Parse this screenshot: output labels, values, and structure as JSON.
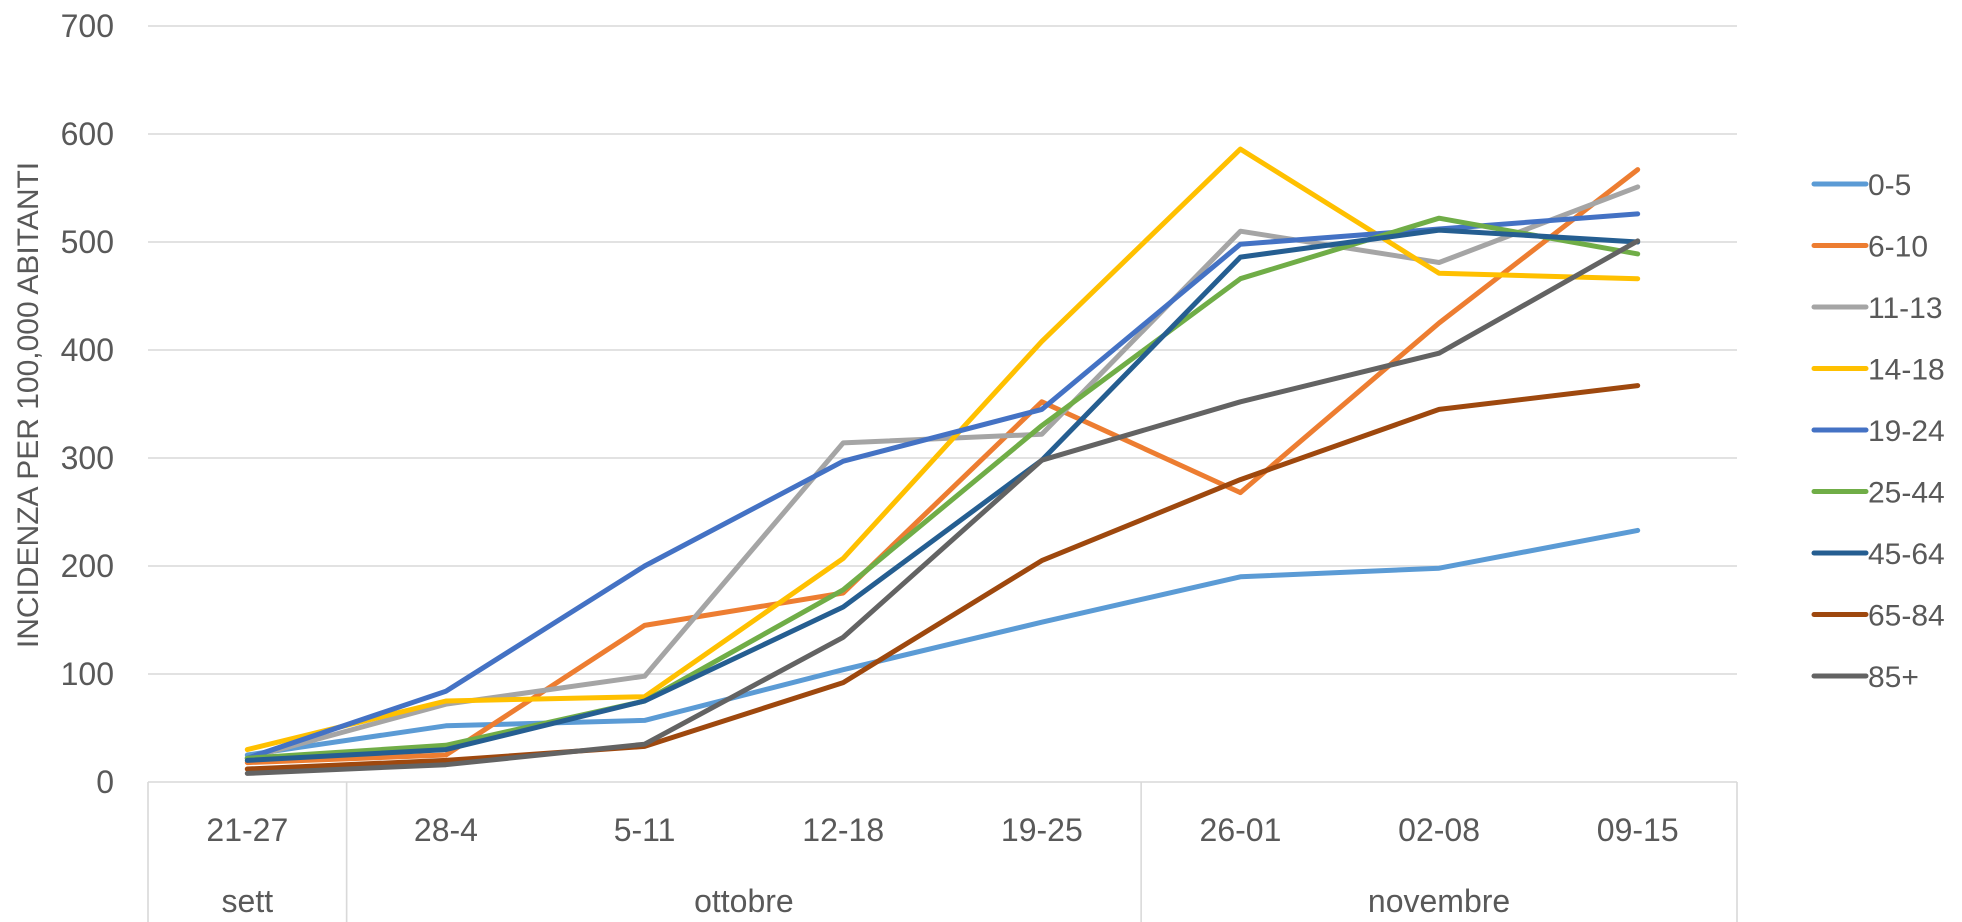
{
  "chart_data": {
    "type": "line",
    "ylabel": "INCIDENZA PER 100,000 ABITANTI",
    "ylim": [
      0,
      700
    ],
    "yticks": [
      "0",
      "100",
      "200",
      "300",
      "400",
      "500",
      "600",
      "700"
    ],
    "categories": [
      "21-27",
      "28-4",
      "5-11",
      "12-18",
      "19-25",
      "26-01",
      "02-08",
      "09-15"
    ],
    "months": [
      {
        "label": "sett",
        "span": 1
      },
      {
        "label": "ottobre",
        "span": 4
      },
      {
        "label": "novembre",
        "span": 3
      }
    ],
    "grid": true,
    "legend_position": "right",
    "series": [
      {
        "name": "0-5",
        "color": "#5B9BD5",
        "values": [
          25,
          52,
          57,
          104,
          148,
          190,
          198,
          233
        ]
      },
      {
        "name": "6-10",
        "color": "#ED7D31",
        "values": [
          18,
          25,
          145,
          175,
          352,
          268,
          425,
          567
        ]
      },
      {
        "name": "11-13",
        "color": "#A5A5A5",
        "values": [
          22,
          72,
          98,
          314,
          322,
          510,
          481,
          551
        ]
      },
      {
        "name": "14-18",
        "color": "#FFC000",
        "values": [
          30,
          75,
          79,
          207,
          408,
          586,
          471,
          466
        ]
      },
      {
        "name": "19-24",
        "color": "#4472C4",
        "values": [
          22,
          84,
          200,
          297,
          345,
          498,
          512,
          526
        ]
      },
      {
        "name": "25-44",
        "color": "#70AD47",
        "values": [
          22,
          34,
          75,
          178,
          330,
          466,
          522,
          489
        ]
      },
      {
        "name": "45-64",
        "color": "#255E91",
        "values": [
          20,
          30,
          75,
          162,
          298,
          486,
          511,
          500
        ]
      },
      {
        "name": "65-84",
        "color": "#9E480E",
        "values": [
          12,
          20,
          33,
          92,
          205,
          280,
          345,
          367
        ]
      },
      {
        "name": "85+",
        "color": "#636363",
        "values": [
          8,
          16,
          35,
          134,
          298,
          352,
          397,
          501
        ]
      }
    ]
  }
}
